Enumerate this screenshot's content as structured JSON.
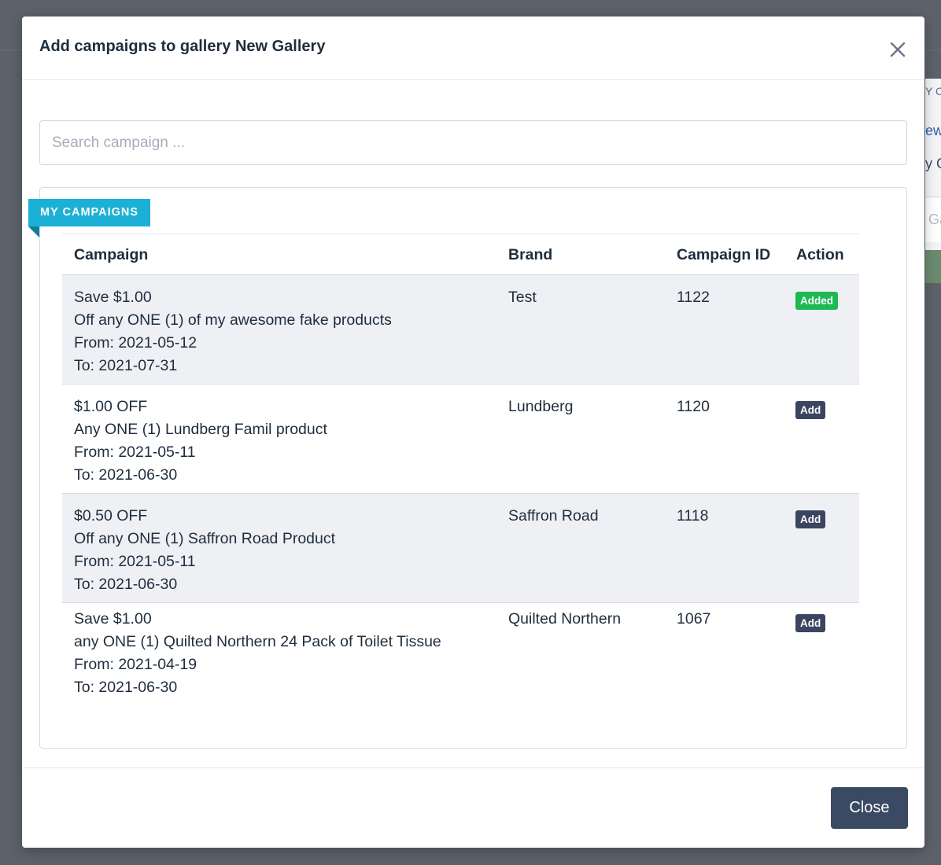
{
  "background": {
    "peek_1": "Y C",
    "peek_2": "ew",
    "peek_3": "y G",
    "input_peek": "Ga"
  },
  "modal": {
    "title": "Add campaigns to gallery New Gallery",
    "search": {
      "placeholder": "Search campaign ...",
      "value": ""
    },
    "section_label": "MY CAMPAIGNS",
    "columns": [
      "Campaign",
      "Brand",
      "Campaign ID",
      "Action"
    ],
    "rows": [
      {
        "title": "Save $1.00",
        "description": "Off any ONE (1) of my awesome fake products",
        "from": "From: 2021-05-12",
        "to": "To: 2021-07-31",
        "brand": "Test",
        "campaign_id": "1122",
        "action": "Added",
        "action_state": "added"
      },
      {
        "title": "$1.00 OFF",
        "description": "Any ONE (1) Lundberg Famil product",
        "from": "From: 2021-05-11",
        "to": "To: 2021-06-30",
        "brand": "Lundberg",
        "campaign_id": "1120",
        "action": "Add",
        "action_state": "add"
      },
      {
        "title": "$0.50 OFF",
        "description": "Off any ONE (1) Saffron Road Product",
        "from": "From: 2021-05-11",
        "to": "To: 2021-06-30",
        "brand": "Saffron Road",
        "campaign_id": "1118",
        "action": "Add",
        "action_state": "add"
      },
      {
        "title": "Save $1.00",
        "description": "any ONE (1) Quilted Northern 24 Pack of Toilet Tissue",
        "from": "From: 2021-04-19",
        "to": "To: 2021-06-30",
        "brand": "Quilted Northern",
        "campaign_id": "1067",
        "action": "Add",
        "action_state": "add"
      }
    ],
    "close_label": "Close",
    "close_icon": "close-icon"
  },
  "colors": {
    "ribbon": "#1cb0d6",
    "added_badge": "#1db954",
    "add_badge": "#3b4560",
    "close_button": "#3b4a63"
  }
}
